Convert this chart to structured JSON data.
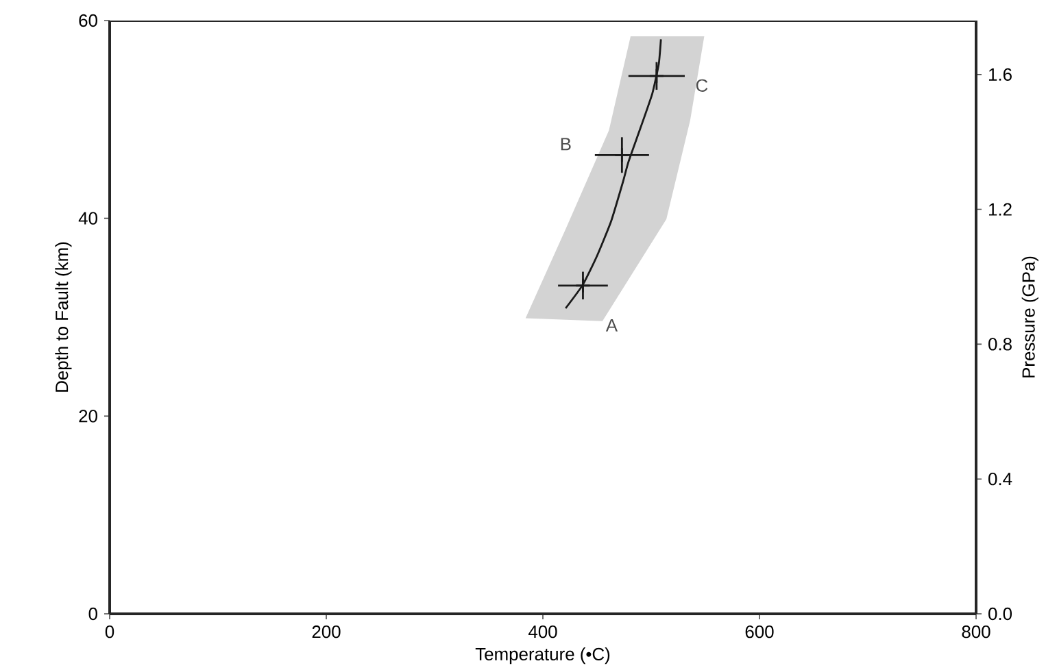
{
  "chart_data": {
    "type": "line",
    "xlabel": "Temperature (•C)",
    "ylabel": "Depth to Fault (km)",
    "y2label": "Pressure (GPa)",
    "xlim": [
      0,
      800
    ],
    "xticks": [
      0,
      200,
      400,
      600,
      800
    ],
    "ylim": [
      0,
      60
    ],
    "yticks": [
      0,
      20,
      40,
      60
    ],
    "y2lim": [
      0,
      1.76
    ],
    "y2ticks": [
      {
        "value": 0,
        "label": "0.0"
      },
      0.4,
      0.8,
      1.2,
      1.6
    ],
    "grid": false,
    "series": [
      {
        "type": "area",
        "color": "#d3d3d3",
        "x": [
          384,
          421,
          461,
          481,
          549,
          536,
          514,
          455
        ],
        "values": [
          29.9,
          38.9,
          48.9,
          58.4,
          58.4,
          49.9,
          39.9,
          29.6
        ]
      },
      {
        "color": "#1a1a1a",
        "line_style": "solid",
        "x": [
          421,
          437,
          450,
          463,
          474,
          479,
          490,
          501,
          507,
          509
        ],
        "values": [
          30.9,
          33.3,
          36.2,
          39.7,
          43.7,
          45.7,
          49.1,
          52.6,
          55.6,
          58.1
        ]
      },
      {
        "type": "scatter",
        "color": "#1a1a1a",
        "marker": "cross",
        "x": [
          437,
          473,
          505
        ],
        "values": [
          33.2,
          46.4,
          54.4
        ],
        "xerrors": [
          23,
          25,
          26
        ],
        "errors": [
          1.4,
          1.8,
          1.4
        ]
      }
    ],
    "annotations": [
      "A",
      "B",
      "C"
    ]
  }
}
